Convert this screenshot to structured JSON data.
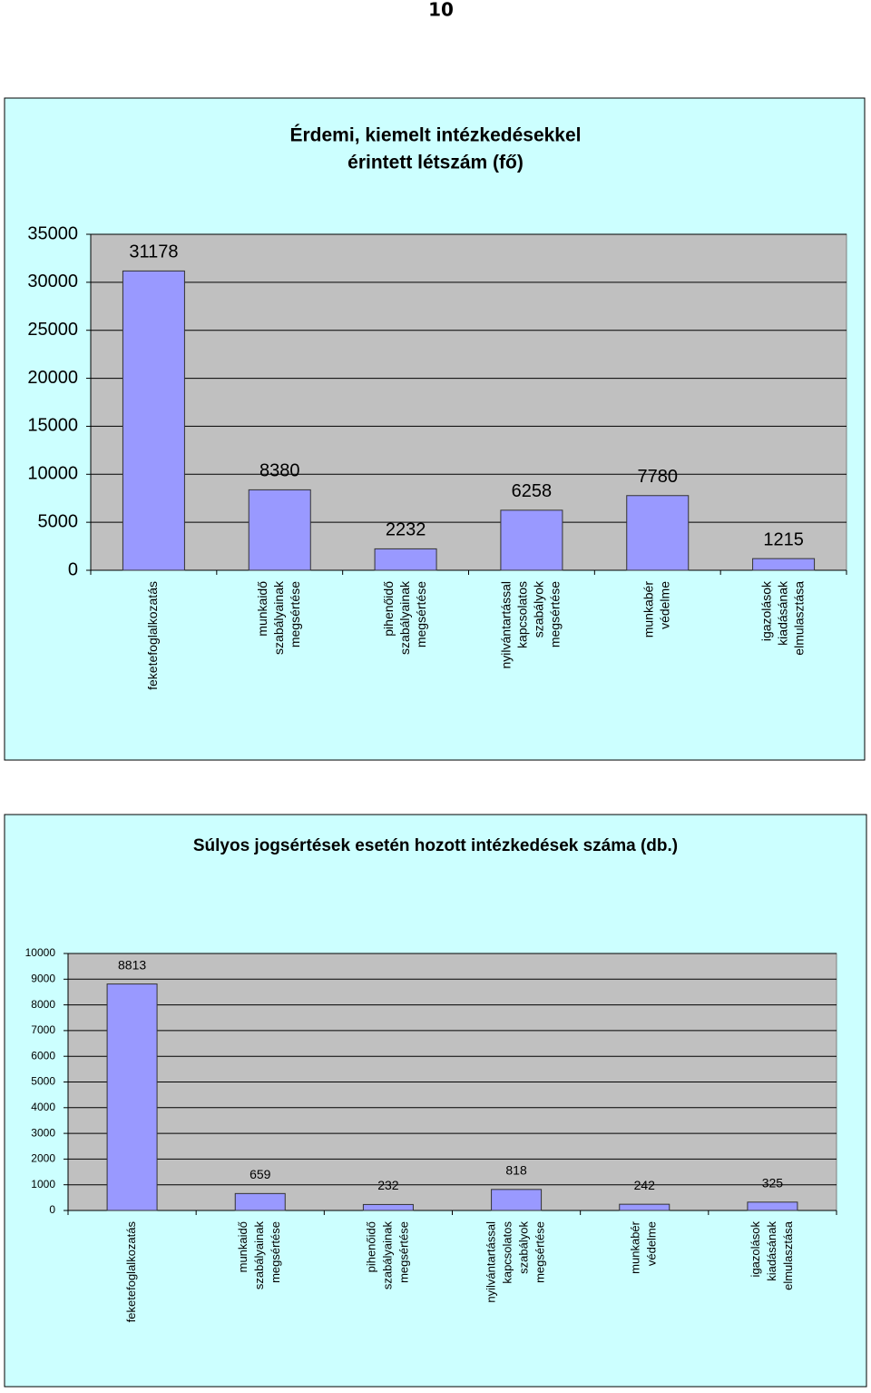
{
  "page_number": "10",
  "chart_data": [
    {
      "type": "bar",
      "title": [
        "Érdemi, kiemelt intézkedésekkel",
        "érintett létszám (fő)"
      ],
      "categories": [
        [
          "feketefoglalkozatás"
        ],
        [
          "munkaidő",
          "szabályainak",
          "megsértése"
        ],
        [
          "pihenőidő",
          "szabályainak",
          "megsértése"
        ],
        [
          "nyilvántartással",
          "kapcsolatos",
          "szabályok",
          "megsértése"
        ],
        [
          "munkabér",
          "védelme"
        ],
        [
          "igazolások",
          "kiadásának",
          "elmulasztása"
        ]
      ],
      "values": [
        31178,
        8380,
        2232,
        6258,
        7780,
        1215
      ],
      "color": "#9999ff",
      "ylim": [
        0,
        35000
      ],
      "yticks": [
        0,
        5000,
        10000,
        15000,
        20000,
        25000,
        30000,
        35000
      ],
      "grid": true
    },
    {
      "type": "bar",
      "title": [
        "Súlyos jogsértések esetén hozott intézkedések száma (db.)"
      ],
      "categories": [
        [
          "feketefoglalkozatás"
        ],
        [
          "munkaidő",
          "szabályainak",
          "megsértése"
        ],
        [
          "pihenőidő",
          "szabályainak",
          "megsértése"
        ],
        [
          "nyilvántartással",
          "kapcsolatos",
          "szabályok",
          "megsértése"
        ],
        [
          "munkabér",
          "védelme"
        ],
        [
          "igazolások",
          "kiadásának",
          "elmulasztása"
        ]
      ],
      "values": [
        8813,
        659,
        232,
        818,
        242,
        325
      ],
      "color": "#9999ff",
      "ylim": [
        0,
        10000
      ],
      "yticks": [
        0,
        1000,
        2000,
        3000,
        4000,
        5000,
        6000,
        7000,
        8000,
        9000,
        10000
      ],
      "grid": true
    }
  ]
}
